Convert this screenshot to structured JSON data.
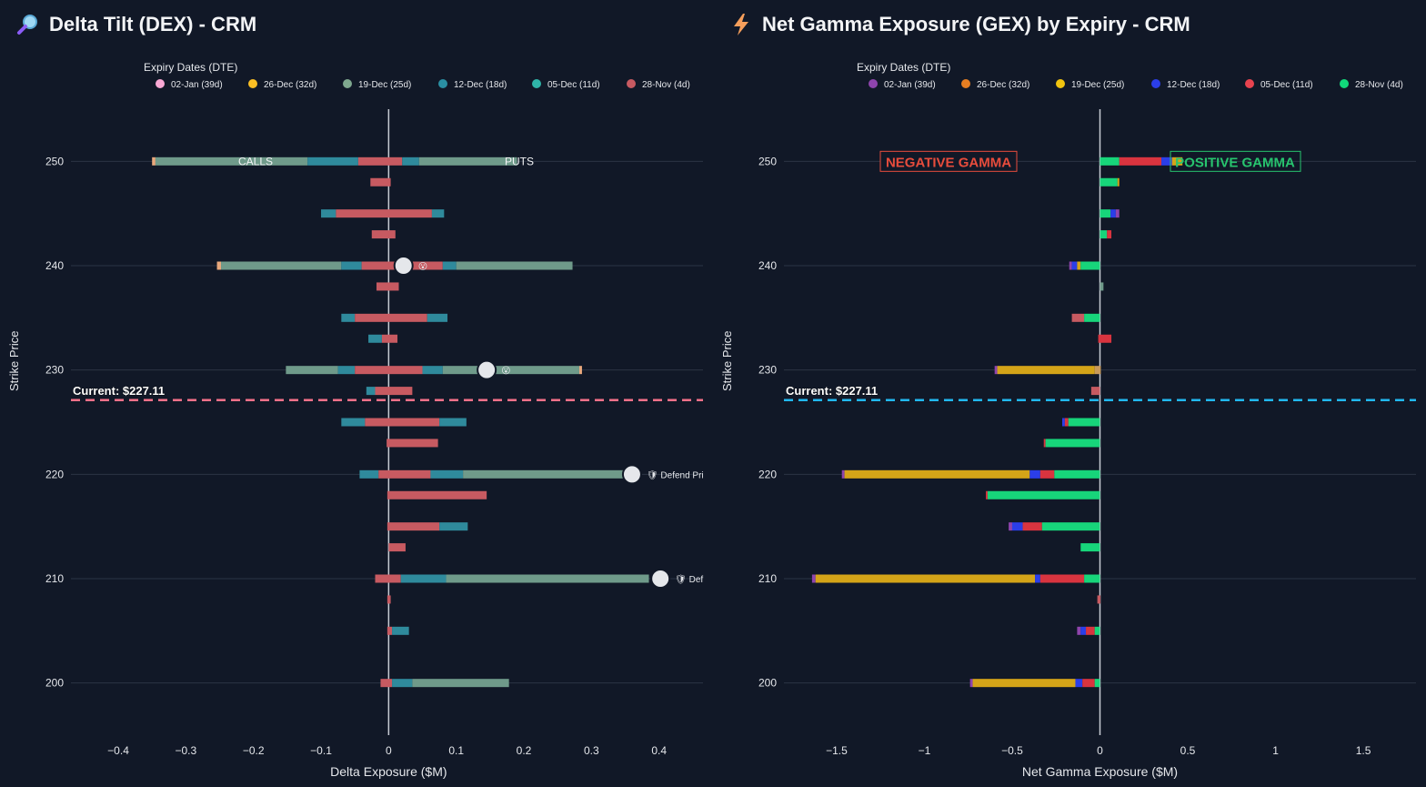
{
  "chart_data": [
    {
      "type": "bar",
      "orientation": "horizontal",
      "stacked": true,
      "title": "Delta Tilt (DEX) - CRM",
      "title_icon": "magnifier-icon",
      "xlabel": "Delta Exposure ($M)",
      "ylabel": "Strike Price",
      "xlim": [
        -0.47,
        0.465
      ],
      "ylim": [
        195,
        255
      ],
      "xticks": [
        -0.4,
        -0.3,
        -0.2,
        -0.1,
        0,
        0.1,
        0.2,
        0.3,
        0.4
      ],
      "xtick_labels": [
        "−0.4",
        "−0.3",
        "−0.2",
        "−0.1",
        "0",
        "0.1",
        "0.2",
        "0.3",
        "0.4"
      ],
      "yticks": [
        200,
        210,
        220,
        230,
        240,
        250
      ],
      "legend_title": "Expiry Dates (DTE)",
      "series": [
        {
          "name": "02-Jan (39d)",
          "color": "#f9a8d4"
        },
        {
          "name": "26-Dec (32d)",
          "color": "#fbbf24"
        },
        {
          "name": "19-Dec (25d)",
          "color": "#7fa88f"
        },
        {
          "name": "12-Dec (18d)",
          "color": "#2a8fa3"
        },
        {
          "name": "05-Dec (11d)",
          "color": "#2fb5a9"
        },
        {
          "name": "28-Nov (4d)",
          "color": "#c75a61"
        }
      ],
      "bars": [
        {
          "strike": 250,
          "segments": [
            [
              -0.35,
              -0.345,
              "#e8a87c"
            ],
            [
              -0.345,
              -0.12,
              "#6f9a8a"
            ],
            [
              -0.12,
              -0.045,
              "#2f8a9c"
            ],
            [
              -0.045,
              0.02,
              "#c75a61"
            ],
            [
              0.02,
              0.045,
              "#2f8a9c"
            ],
            [
              0.045,
              0.19,
              "#6f9a8a"
            ]
          ]
        },
        {
          "strike": 248,
          "segments": [
            [
              -0.027,
              0.003,
              "#c75a61"
            ]
          ]
        },
        {
          "strike": 245,
          "segments": [
            [
              -0.1,
              -0.078,
              "#2f8a9c"
            ],
            [
              -0.078,
              0.064,
              "#c75a61"
            ],
            [
              0.064,
              0.082,
              "#2f8a9c"
            ]
          ]
        },
        {
          "strike": 243,
          "segments": [
            [
              -0.025,
              0.01,
              "#c75a61"
            ]
          ]
        },
        {
          "strike": 240,
          "segments": [
            [
              -0.254,
              -0.248,
              "#e8a87c"
            ],
            [
              -0.248,
              -0.07,
              "#6f9a8a"
            ],
            [
              -0.07,
              -0.04,
              "#2f8a9c"
            ],
            [
              -0.04,
              0.08,
              "#c75a61"
            ],
            [
              0.08,
              0.1,
              "#2f8a9c"
            ],
            [
              0.1,
              0.272,
              "#6f9a8a"
            ]
          ]
        },
        {
          "strike": 238,
          "segments": [
            [
              -0.018,
              0.015,
              "#c75a61"
            ]
          ]
        },
        {
          "strike": 235,
          "segments": [
            [
              -0.07,
              -0.05,
              "#2f8a9c"
            ],
            [
              -0.05,
              0.057,
              "#c75a61"
            ],
            [
              0.057,
              0.087,
              "#2f8a9c"
            ]
          ]
        },
        {
          "strike": 233,
          "segments": [
            [
              -0.03,
              -0.01,
              "#2f8a9c"
            ],
            [
              -0.01,
              0.013,
              "#c75a61"
            ]
          ]
        },
        {
          "strike": 230,
          "segments": [
            [
              -0.152,
              -0.075,
              "#6f9a8a"
            ],
            [
              -0.075,
              -0.05,
              "#2f8a9c"
            ],
            [
              -0.05,
              0.05,
              "#c75a61"
            ],
            [
              0.05,
              0.08,
              "#2f8a9c"
            ],
            [
              0.08,
              0.282,
              "#6f9a8a"
            ],
            [
              0.282,
              0.286,
              "#e8a87c"
            ]
          ]
        },
        {
          "strike": 228,
          "segments": [
            [
              -0.033,
              -0.02,
              "#2f8a9c"
            ],
            [
              -0.02,
              0.035,
              "#c75a61"
            ]
          ]
        },
        {
          "strike": 225,
          "segments": [
            [
              -0.07,
              -0.035,
              "#2f8a9c"
            ],
            [
              -0.035,
              0.075,
              "#c75a61"
            ],
            [
              0.075,
              0.115,
              "#2f8a9c"
            ]
          ]
        },
        {
          "strike": 223,
          "segments": [
            [
              -0.003,
              0.073,
              "#c75a61"
            ]
          ]
        },
        {
          "strike": 220,
          "segments": [
            [
              -0.043,
              -0.015,
              "#2f8a9c"
            ],
            [
              -0.015,
              0.062,
              "#c75a61"
            ],
            [
              0.062,
              0.11,
              "#2f8a9c"
            ],
            [
              0.11,
              0.36,
              "#6f9a8a"
            ]
          ]
        },
        {
          "strike": 218,
          "segments": [
            [
              -0.002,
              0.145,
              "#c75a61"
            ]
          ]
        },
        {
          "strike": 215,
          "segments": [
            [
              -0.002,
              0.075,
              "#c75a61"
            ],
            [
              0.075,
              0.117,
              "#2f8a9c"
            ]
          ]
        },
        {
          "strike": 213,
          "segments": [
            [
              0,
              0.025,
              "#c75a61"
            ]
          ]
        },
        {
          "strike": 210,
          "segments": [
            [
              -0.02,
              0.018,
              "#c75a61"
            ],
            [
              0.018,
              0.085,
              "#2f8a9c"
            ],
            [
              0.085,
              0.385,
              "#6f9a8a"
            ]
          ]
        },
        {
          "strike": 208,
          "segments": [
            [
              -0.002,
              0.003,
              "#c75a61"
            ]
          ]
        },
        {
          "strike": 205,
          "segments": [
            [
              -0.002,
              0.005,
              "#c75a61"
            ],
            [
              0.005,
              0.03,
              "#2f8a9c"
            ]
          ]
        },
        {
          "strike": 200,
          "segments": [
            [
              -0.012,
              0.005,
              "#c75a61"
            ],
            [
              0.005,
              0.035,
              "#2f8a9c"
            ],
            [
              0.035,
              0.178,
              "#6f9a8a"
            ]
          ]
        }
      ],
      "markers": [
        {
          "strike": 240,
          "x": 0.022,
          "badge": "😮"
        },
        {
          "strike": 230,
          "x": 0.145,
          "badge": "😮"
        },
        {
          "strike": 220,
          "x": 0.36,
          "badge": "🛡 Defend Pri"
        },
        {
          "strike": 210,
          "x": 0.402,
          "badge": "🛡 Def"
        }
      ],
      "current_price": 227.11,
      "current_label": "Current: $227.11",
      "current_line_color": "#f87189",
      "annotations": {
        "left": "CALLS",
        "right": "PUTS",
        "strike": 250
      }
    },
    {
      "type": "bar",
      "orientation": "horizontal",
      "stacked": true,
      "title": "Net Gamma Exposure (GEX) by Expiry - CRM",
      "title_icon": "lightning-icon",
      "xlabel": "Net Gamma Exposure ($M)",
      "ylabel": "Strike Price",
      "xlim": [
        -1.8,
        1.8
      ],
      "ylim": [
        195,
        255
      ],
      "xticks": [
        -1.5,
        -1,
        -0.5,
        0,
        0.5,
        1,
        1.5
      ],
      "xtick_labels": [
        "−1.5",
        "−1",
        "−0.5",
        "0",
        "0.5",
        "1",
        "1.5"
      ],
      "yticks": [
        200,
        210,
        220,
        230,
        240,
        250
      ],
      "legend_title": "Expiry Dates (DTE)",
      "series": [
        {
          "name": "02-Jan (39d)",
          "color": "#8e44ad"
        },
        {
          "name": "26-Dec (32d)",
          "color": "#e67e22"
        },
        {
          "name": "19-Dec (25d)",
          "color": "#f1c40f"
        },
        {
          "name": "12-Dec (18d)",
          "color": "#2b3ee8"
        },
        {
          "name": "05-Dec (11d)",
          "color": "#e8434f"
        },
        {
          "name": "28-Nov (4d)",
          "color": "#11d97a"
        }
      ],
      "bars": [
        {
          "strike": 250,
          "segments": [
            [
              0,
              0.11,
              "#17d57a"
            ],
            [
              0.11,
              0.35,
              "#d9343f"
            ],
            [
              0.35,
              0.41,
              "#2b3ee8"
            ],
            [
              0.41,
              0.47,
              "#d4a418"
            ]
          ]
        },
        {
          "strike": 248,
          "segments": [
            [
              0,
              0.1,
              "#17d57a"
            ],
            [
              0.1,
              0.11,
              "#d4a418"
            ]
          ]
        },
        {
          "strike": 245,
          "segments": [
            [
              0,
              0.06,
              "#17d57a"
            ],
            [
              0.06,
              0.09,
              "#2b3ee8"
            ],
            [
              0.09,
              0.11,
              "#8e44ad"
            ]
          ]
        },
        {
          "strike": 243,
          "segments": [
            [
              0,
              0.04,
              "#17d57a"
            ],
            [
              0.04,
              0.065,
              "#d9343f"
            ]
          ]
        },
        {
          "strike": 240,
          "segments": [
            [
              -0.175,
              -0.16,
              "#8e44ad"
            ],
            [
              -0.16,
              -0.13,
              "#2b3ee8"
            ],
            [
              -0.13,
              -0.11,
              "#d4a418"
            ],
            [
              -0.11,
              0,
              "#17d57a"
            ]
          ]
        },
        {
          "strike": 238,
          "segments": [
            [
              0,
              0.02,
              "#6f9a8a"
            ]
          ]
        },
        {
          "strike": 235,
          "segments": [
            [
              -0.16,
              -0.09,
              "#c75a61"
            ],
            [
              -0.09,
              0,
              "#17d57a"
            ]
          ]
        },
        {
          "strike": 233,
          "segments": [
            [
              -0.01,
              0.065,
              "#d9343f"
            ]
          ]
        },
        {
          "strike": 230,
          "segments": [
            [
              -0.6,
              -0.585,
              "#8e44ad"
            ],
            [
              -0.585,
              -0.03,
              "#d4a418"
            ],
            [
              -0.03,
              0.005,
              "#c99a5a"
            ]
          ]
        },
        {
          "strike": 228,
          "segments": [
            [
              -0.05,
              0,
              "#c75a61"
            ]
          ]
        },
        {
          "strike": 225,
          "segments": [
            [
              -0.215,
              -0.2,
              "#2b3ee8"
            ],
            [
              -0.2,
              -0.18,
              "#d9343f"
            ],
            [
              -0.18,
              0,
              "#17d57a"
            ]
          ]
        },
        {
          "strike": 223,
          "segments": [
            [
              -0.32,
              -0.31,
              "#d9343f"
            ],
            [
              -0.31,
              0,
              "#17d57a"
            ]
          ]
        },
        {
          "strike": 220,
          "segments": [
            [
              -1.47,
              -1.455,
              "#8e44ad"
            ],
            [
              -1.455,
              -0.4,
              "#d4a418"
            ],
            [
              -0.4,
              -0.34,
              "#2b3ee8"
            ],
            [
              -0.34,
              -0.26,
              "#d9343f"
            ],
            [
              -0.26,
              0,
              "#17d57a"
            ]
          ]
        },
        {
          "strike": 218,
          "segments": [
            [
              -0.65,
              -0.64,
              "#d9343f"
            ],
            [
              -0.64,
              0,
              "#17d57a"
            ]
          ]
        },
        {
          "strike": 215,
          "segments": [
            [
              -0.52,
              -0.5,
              "#8e44ad"
            ],
            [
              -0.5,
              -0.44,
              "#2b3ee8"
            ],
            [
              -0.44,
              -0.33,
              "#d9343f"
            ],
            [
              -0.33,
              0,
              "#17d57a"
            ]
          ]
        },
        {
          "strike": 213,
          "segments": [
            [
              -0.11,
              0,
              "#17d57a"
            ]
          ]
        },
        {
          "strike": 210,
          "segments": [
            [
              -1.64,
              -1.62,
              "#8e44ad"
            ],
            [
              -1.62,
              -0.37,
              "#d4a418"
            ],
            [
              -0.37,
              -0.34,
              "#2b3ee8"
            ],
            [
              -0.34,
              -0.09,
              "#d9343f"
            ],
            [
              -0.09,
              0,
              "#17d57a"
            ]
          ]
        },
        {
          "strike": 208,
          "segments": [
            [
              -0.015,
              0.003,
              "#c75a61"
            ]
          ]
        },
        {
          "strike": 205,
          "segments": [
            [
              -0.13,
              -0.11,
              "#8e44ad"
            ],
            [
              -0.11,
              -0.08,
              "#2b3ee8"
            ],
            [
              -0.08,
              -0.03,
              "#d9343f"
            ],
            [
              -0.03,
              0,
              "#17d57a"
            ]
          ]
        },
        {
          "strike": 200,
          "segments": [
            [
              -0.74,
              -0.725,
              "#8e44ad"
            ],
            [
              -0.725,
              -0.14,
              "#d4a418"
            ],
            [
              -0.14,
              -0.1,
              "#2b3ee8"
            ],
            [
              -0.1,
              -0.03,
              "#d9343f"
            ],
            [
              -0.03,
              0,
              "#17d57a"
            ]
          ]
        }
      ],
      "current_price": 227.11,
      "current_label": "Current: $227.11",
      "current_line_color": "#22b8f0",
      "annotations": {
        "negative": "NEGATIVE GAMMA",
        "positive": "POSITIVE GAMMA",
        "strike": 250
      }
    }
  ]
}
